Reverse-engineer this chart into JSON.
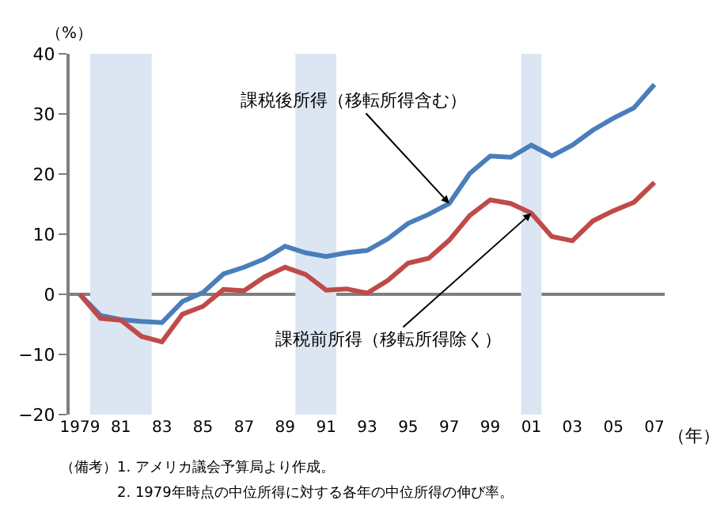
{
  "chart_data": {
    "type": "line",
    "xlabel": "（年）",
    "ylabel": "（%）",
    "x": [
      1979,
      1980,
      1981,
      1982,
      1983,
      1984,
      1985,
      1986,
      1987,
      1988,
      1989,
      1990,
      1991,
      1992,
      1993,
      1994,
      1995,
      1996,
      1997,
      1998,
      1999,
      2000,
      2001,
      2002,
      2003,
      2004,
      2005,
      2006,
      2007
    ],
    "series": [
      {
        "color": "#4a7ebb",
        "values": [
          0,
          -3.5,
          -4.2,
          -4.5,
          -4.7,
          -1.2,
          0.3,
          3.4,
          4.5,
          5.9,
          8.0,
          6.9,
          6.3,
          6.9,
          7.3,
          9.2,
          11.8,
          13.3,
          15.1,
          20.1,
          23.0,
          22.8,
          24.8,
          23.0,
          24.8,
          27.3,
          29.3,
          31.0,
          34.9
        ]
      },
      {
        "color": "#be4b48",
        "values": [
          0,
          -4.0,
          -4.3,
          -7.0,
          -7.9,
          -3.3,
          -2.0,
          0.8,
          0.6,
          2.9,
          4.5,
          3.3,
          0.7,
          0.9,
          0.2,
          2.3,
          5.2,
          6.0,
          9.0,
          13.1,
          15.7,
          15.1,
          13.5,
          9.6,
          8.9,
          12.2,
          13.9,
          15.3,
          18.6
        ]
      }
    ],
    "xlim": [
      1978.5,
      2007.5
    ],
    "xticks": [
      {
        "value": 1979,
        "label": "1979"
      },
      {
        "value": 1981,
        "label": "81"
      },
      {
        "value": 1983,
        "label": "83"
      },
      {
        "value": 1985,
        "label": "85"
      },
      {
        "value": 1987,
        "label": "87"
      },
      {
        "value": 1989,
        "label": "89"
      },
      {
        "value": 1991,
        "label": "91"
      },
      {
        "value": 1993,
        "label": "93"
      },
      {
        "value": 1995,
        "label": "95"
      },
      {
        "value": 1997,
        "label": "97"
      },
      {
        "value": 1999,
        "label": "99"
      },
      {
        "value": 2001,
        "label": "01"
      },
      {
        "value": 2003,
        "label": "03"
      },
      {
        "value": 2005,
        "label": "05"
      },
      {
        "value": 2007,
        "label": "07"
      }
    ],
    "ylim": [
      -20,
      40
    ],
    "yticks": [
      {
        "value": -20,
        "label": "−20"
      },
      {
        "value": -10,
        "label": "−10"
      },
      0,
      10,
      20,
      30,
      40
    ],
    "bands": [
      {
        "axis": "x",
        "from": 1979.5,
        "to": 1982.5,
        "color": "#dce6f2"
      },
      {
        "axis": "x",
        "from": 1989.5,
        "to": 1991.5,
        "color": "#dce6f2"
      },
      {
        "axis": "x",
        "from": 2000.5,
        "to": 2001.5,
        "color": "#dce6f2"
      }
    ],
    "ref_lines": [
      {
        "axis": "y",
        "value": 0,
        "color": "#7f7f7f"
      }
    ],
    "annotations": [
      {
        "text": "課税後所得（移転所得含む）",
        "x": 1997,
        "y": 15.1
      },
      {
        "text": "課税前所得（移転所得除く）",
        "x": 2001,
        "y": 13.5
      },
      "（備考）1. アメリカ議会予算局より作成。",
      "2. 1979年時点の中位所得に対する各年の中位所得の伸び率。"
    ],
    "grid": false,
    "marker": "none",
    "line_style": "solid"
  }
}
